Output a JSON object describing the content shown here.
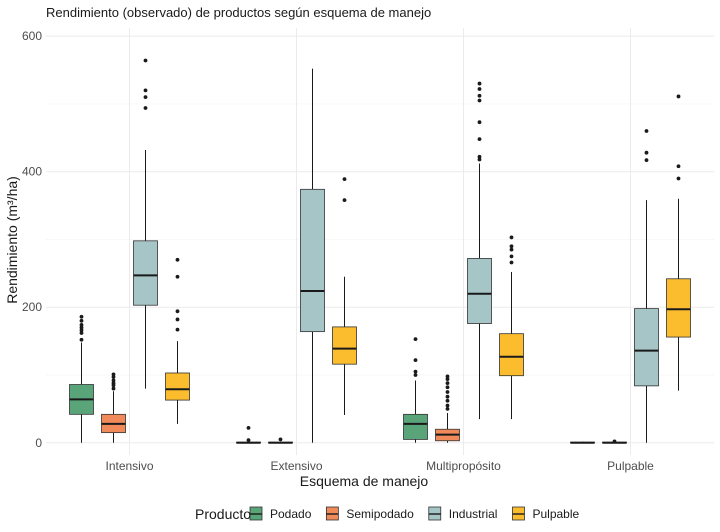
{
  "chart_data": {
    "type": "boxplot",
    "title": "Rendimiento (observado) de productos según esquema de manejo",
    "xlabel": "Esquema de manejo",
    "ylabel": "Rendimiento (m³/ha)",
    "ylim": [
      -18,
      612
    ],
    "yticks": [
      0,
      200,
      400,
      600
    ],
    "grid": true,
    "legend_position": "bottom",
    "legend_title": "Producto",
    "categories": [
      "Intensivo",
      "Extensivo",
      "Multipropósito",
      "Pulpable"
    ],
    "series": [
      {
        "name": "Podado",
        "color": "#5aa47a",
        "boxes": [
          {
            "whisker_low": 0,
            "q1": 42,
            "median": 64,
            "q3": 86,
            "whisker_high": 148,
            "outliers": [
              152,
              162,
              166,
              170,
              174,
              180,
              186
            ]
          },
          {
            "whisker_low": 0,
            "q1": 0,
            "median": 0,
            "q3": 1,
            "whisker_high": 2,
            "outliers": [
              4,
              22
            ]
          },
          {
            "whisker_low": 0,
            "q1": 5,
            "median": 28,
            "q3": 42,
            "whisker_high": 92,
            "outliers": [
              100,
              105,
              122,
              153
            ]
          },
          {
            "whisker_low": 0,
            "q1": 0,
            "median": 0,
            "q3": 1,
            "whisker_high": 2,
            "outliers": []
          }
        ]
      },
      {
        "name": "Semipodado",
        "color": "#f08a5a",
        "boxes": [
          {
            "whisker_low": 0,
            "q1": 15,
            "median": 28,
            "q3": 42,
            "whisker_high": 76,
            "outliers": [
              80,
              85,
              88,
              92,
              97,
              101
            ]
          },
          {
            "whisker_low": 0,
            "q1": 0,
            "median": 0,
            "q3": 1,
            "whisker_high": 2,
            "outliers": [
              5
            ]
          },
          {
            "whisker_low": 0,
            "q1": 3,
            "median": 12,
            "q3": 20,
            "whisker_high": 44,
            "outliers": [
              50,
              55,
              62,
              68,
              75,
              82,
              88,
              94,
              98
            ]
          },
          {
            "whisker_low": 0,
            "q1": 0,
            "median": 0,
            "q3": 1,
            "whisker_high": 2,
            "outliers": [
              2
            ]
          }
        ]
      },
      {
        "name": "Industrial",
        "color": "#a5c5c6",
        "boxes": [
          {
            "whisker_low": 80,
            "q1": 203,
            "median": 247,
            "q3": 298,
            "whisker_high": 432,
            "outliers": [
              494,
              510,
              520,
              564
            ]
          },
          {
            "whisker_low": 0,
            "q1": 164,
            "median": 224,
            "q3": 374,
            "whisker_high": 552,
            "outliers": []
          },
          {
            "whisker_low": 35,
            "q1": 176,
            "median": 220,
            "q3": 272,
            "whisker_high": 412,
            "outliers": [
              418,
              422,
              448,
              473,
              505,
              512,
              522,
              530
            ]
          },
          {
            "whisker_low": 0,
            "q1": 84,
            "median": 136,
            "q3": 198,
            "whisker_high": 358,
            "outliers": [
              417,
              428,
              460
            ]
          }
        ]
      },
      {
        "name": "Pulpable",
        "color": "#fbbc2e",
        "boxes": [
          {
            "whisker_low": 28,
            "q1": 63,
            "median": 79,
            "q3": 103,
            "whisker_high": 150,
            "outliers": [
              167,
              182,
              194,
              245,
              270
            ]
          },
          {
            "whisker_low": 41,
            "q1": 116,
            "median": 139,
            "q3": 171,
            "whisker_high": 245,
            "outliers": [
              358,
              389
            ]
          },
          {
            "whisker_low": 35,
            "q1": 99,
            "median": 127,
            "q3": 161,
            "whisker_high": 252,
            "outliers": [
              266,
              275,
              285,
              290,
              303
            ]
          },
          {
            "whisker_low": 77,
            "q1": 156,
            "median": 197,
            "q3": 242,
            "whisker_high": 360,
            "outliers": [
              390,
              408,
              511
            ]
          }
        ]
      }
    ]
  }
}
